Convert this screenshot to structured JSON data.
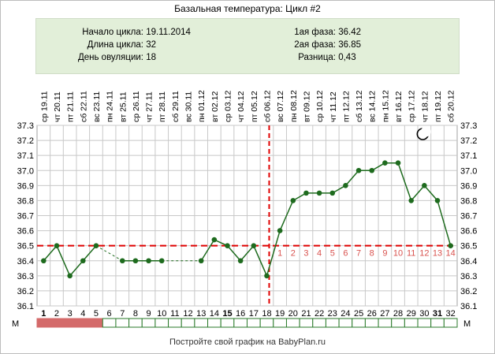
{
  "title": "Базальная температура: Цикл #2",
  "info": {
    "left": [
      {
        "label": "Начало цикла:",
        "value": "19.11.2014"
      },
      {
        "label": "Длина цикла:",
        "value": "32"
      },
      {
        "label": "День овуляции:",
        "value": "18"
      }
    ],
    "right": [
      {
        "label": "1ая фаза:",
        "value": "36.42"
      },
      {
        "label": "2ая фаза:",
        "value": "36.85"
      },
      {
        "label": "Разница:",
        "value": "0,43"
      }
    ]
  },
  "footer": "Постройте свой график на BabyPlan.ru",
  "chart_data": {
    "type": "line",
    "x": [
      1,
      2,
      3,
      4,
      5,
      6,
      7,
      8,
      9,
      10,
      11,
      12,
      13,
      14,
      15,
      16,
      17,
      18,
      19,
      20,
      21,
      22,
      23,
      24,
      25,
      26,
      27,
      28,
      29,
      30,
      31,
      32
    ],
    "dates": [
      "19.11",
      "20.11",
      "21.11",
      "22.11",
      "23.11",
      "24.11",
      "25.11",
      "26.11",
      "27.11",
      "28.11",
      "29.11",
      "30.11",
      "01.12",
      "02.12",
      "03.12",
      "04.12",
      "05.12",
      "06.12",
      "07.12",
      "08.12",
      "09.12",
      "10.12",
      "11.12",
      "12.12",
      "13.12",
      "14.12",
      "15.12",
      "16.12",
      "17.12",
      "18.12",
      "19.12",
      "20.12"
    ],
    "weekdays": [
      "ср",
      "чт",
      "пт",
      "сб",
      "вс",
      "пн",
      "вт",
      "ср",
      "чт",
      "пт",
      "сб",
      "вс",
      "пн",
      "вт",
      "ср",
      "чт",
      "пт",
      "сб",
      "вс",
      "пн",
      "вт",
      "ср",
      "чт",
      "пт",
      "сб",
      "вс",
      "пн",
      "вт",
      "ср",
      "чт",
      "пт",
      "сб"
    ],
    "temperatures": [
      36.4,
      36.5,
      36.3,
      36.4,
      36.5,
      null,
      36.4,
      36.4,
      36.4,
      36.4,
      null,
      null,
      36.4,
      36.54,
      36.5,
      36.4,
      36.5,
      36.3,
      36.6,
      36.8,
      36.85,
      36.85,
      36.85,
      36.9,
      37.0,
      37.0,
      37.05,
      37.05,
      36.8,
      36.9,
      36.8,
      36.5
    ],
    "ylim": [
      36.1,
      37.3
    ],
    "yticks": [
      "36.1",
      "36.2",
      "36.3",
      "36.4",
      "36.5",
      "36.6",
      "36.7",
      "36.8",
      "36.9",
      "37.0",
      "37.1",
      "37.2",
      "37.3"
    ],
    "coverline": 36.5,
    "ovulation_day": 18,
    "phase2_labels": [
      "1",
      "2",
      "3",
      "4",
      "5",
      "6",
      "7",
      "8",
      "9",
      "10",
      "11",
      "12",
      "13",
      "14"
    ],
    "bold_days": [
      1,
      15,
      31
    ],
    "menstruation_days": [
      1,
      2,
      3,
      4,
      5
    ],
    "menstruation_label": "М",
    "grid": true,
    "moon_day": 30,
    "colors": {
      "line": "#1e6b1e",
      "marker": "#1e6b1e",
      "coverline": "#e00000",
      "ovulation": "#e00000",
      "grid": "#c8c8c8",
      "phase2_label": "#d9534f",
      "menstruation_fill": "#d46a6a",
      "cell_border": "#2a7a2a"
    }
  }
}
